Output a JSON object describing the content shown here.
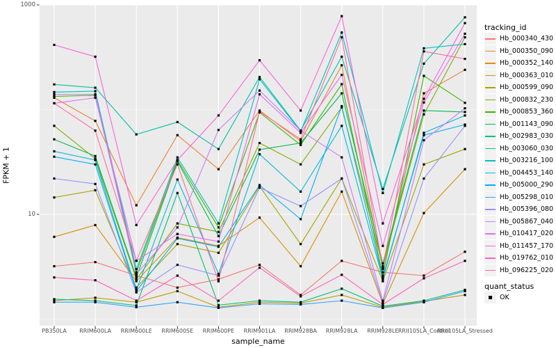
{
  "chart_data": {
    "type": "line",
    "title": "",
    "xlabel": "sample_name",
    "ylabel": "FPKM + 1",
    "y_axis": {
      "scale": "log10",
      "major_ticks": [
        {
          "label": "1000",
          "value": 1000
        },
        {
          "label": "10",
          "value": 10
        }
      ],
      "minor_gridline_values": [
        100,
        1
      ],
      "range_top": 1000,
      "range_bottom": 0.9
    },
    "x_categories": [
      "PB350LA",
      "RRIM600LA",
      "RRIM600LE",
      "RRIM600SE",
      "RRIM600PE",
      "RRIM901LA",
      "RRIM928BA",
      "RRIM928LA",
      "RRIM928LE",
      "RRII105LA_Control",
      "RRII105LA_Stressed"
    ],
    "legend": {
      "series_title": "tracking_id",
      "status_title": "quant_status",
      "status_items": [
        {
          "label": "OK",
          "marker": "filled-black-square"
        }
      ],
      "position": "right"
    },
    "marker": {
      "shape": "filled-square",
      "color": "#000000"
    },
    "colors": {
      "panel_background": "#EBEBEB",
      "gridline_major": "#FFFFFF",
      "gridline_minor": "#FFFFFF",
      "tick_text": "#4D4D4D",
      "tick_mark": "#333333"
    },
    "series": [
      {
        "name": "Hb_000340_430",
        "color": "#F8766D",
        "values": [
          3.2,
          3.5,
          2.6,
          2.0,
          2.4,
          3.3,
          1.7,
          3.6,
          2.8,
          2.6,
          4.4
        ]
      },
      {
        "name": "Hb_000350_090",
        "color": "#EA8331",
        "values": [
          130,
          78,
          12.2,
          57,
          27,
          98,
          50,
          265,
          3.0,
          143,
          240
        ]
      },
      {
        "name": "Hb_000352_140",
        "color": "#D89000",
        "values": [
          6.1,
          7.9,
          2.3,
          6.0,
          5.0,
          9.3,
          3.2,
          16.5,
          1.4,
          10.3,
          27
        ]
      },
      {
        "name": "Hb_000363_010",
        "color": "#C09B00",
        "values": [
          1.5,
          1.6,
          1.45,
          1.85,
          1.3,
          1.45,
          1.42,
          1.7,
          1.3,
          1.48,
          1.7
        ]
      },
      {
        "name": "Hb_000599_090",
        "color": "#A3A500",
        "values": [
          14.5,
          17,
          2.0,
          5.2,
          4.3,
          18.5,
          5.2,
          22,
          2.3,
          30,
          42
        ]
      },
      {
        "name": "Hb_000832_230",
        "color": "#7CAE00",
        "values": [
          70,
          34,
          2.4,
          8.2,
          6.8,
          48,
          30,
          105,
          3.2,
          90,
          490
        ]
      },
      {
        "name": "Hb_000853_360",
        "color": "#39B600",
        "values": [
          134,
          137,
          2.8,
          33,
          7.5,
          94,
          46,
          175,
          2.6,
          210,
          116
        ]
      },
      {
        "name": "Hb_001143_090",
        "color": "#00BB4E",
        "values": [
          52,
          36,
          2.5,
          32,
          6.2,
          41.5,
          48,
          143,
          3.4,
          98,
          95
        ]
      },
      {
        "name": "Hb_002983_030",
        "color": "#00BF7D",
        "values": [
          1.55,
          1.5,
          1.35,
          16,
          1.36,
          1.5,
          1.45,
          1.95,
          1.33,
          1.5,
          1.9
        ]
      },
      {
        "name": "Hb_003060_030",
        "color": "#00C1A3",
        "values": [
          174,
          162,
          58,
          76,
          42,
          205,
          63,
          320,
          17.5,
          275,
          760
        ]
      },
      {
        "name": "Hb_003216_100",
        "color": "#00BFC4",
        "values": [
          147,
          150,
          3.0,
          35,
          8.2,
          195,
          62,
          545,
          16,
          385,
          422
        ]
      },
      {
        "name": "Hb_004453_140",
        "color": "#00BAE0",
        "values": [
          40,
          33,
          1.9,
          21.5,
          2.7,
          37.5,
          16.5,
          70,
          2.4,
          60,
          88
        ]
      },
      {
        "name": "Hb_005000_290",
        "color": "#00B0F6",
        "values": [
          35.5,
          30,
          1.85,
          5.9,
          4.9,
          19,
          9,
          108,
          2.5,
          57,
          72
        ]
      },
      {
        "name": "Hb_005298_010",
        "color": "#35A2FF",
        "values": [
          1.45,
          1.45,
          1.3,
          1.45,
          1.28,
          1.4,
          1.38,
          1.5,
          1.28,
          1.45,
          1.85
        ]
      },
      {
        "name": "Hb_005396_080",
        "color": "#9590FF",
        "values": [
          22,
          19.5,
          1.8,
          3.3,
          2.6,
          18,
          12,
          22,
          1.45,
          22,
          70
        ]
      },
      {
        "name": "Hb_005867_040",
        "color": "#C77CFF",
        "values": [
          140,
          140,
          2.7,
          7.5,
          64,
          152,
          63,
          35,
          1.5,
          51,
          103
        ]
      },
      {
        "name": "Hb_010417_020",
        "color": "#E76BF3",
        "values": [
          115,
          130,
          3.6,
          6.5,
          5.5,
          140,
          60,
          215,
          5.0,
          117,
          530
        ]
      },
      {
        "name": "Hb_011457_170",
        "color": "#FA62DB",
        "values": [
          415,
          320,
          7.9,
          33,
          88,
          296,
          98,
          780,
          8.2,
          127,
          670
        ]
      },
      {
        "name": "Hb_019762_010",
        "color": "#FF62BC",
        "values": [
          2.5,
          2.35,
          1.5,
          2.6,
          1.5,
          3.1,
          1.65,
          2.65,
          1.38,
          2.45,
          3.6
        ]
      },
      {
        "name": "Hb_096225_020",
        "color": "#FF6A98",
        "values": [
          115,
          63,
          3.6,
          30,
          2.3,
          96,
          52,
          490,
          3.1,
          360,
          305
        ]
      }
    ]
  }
}
